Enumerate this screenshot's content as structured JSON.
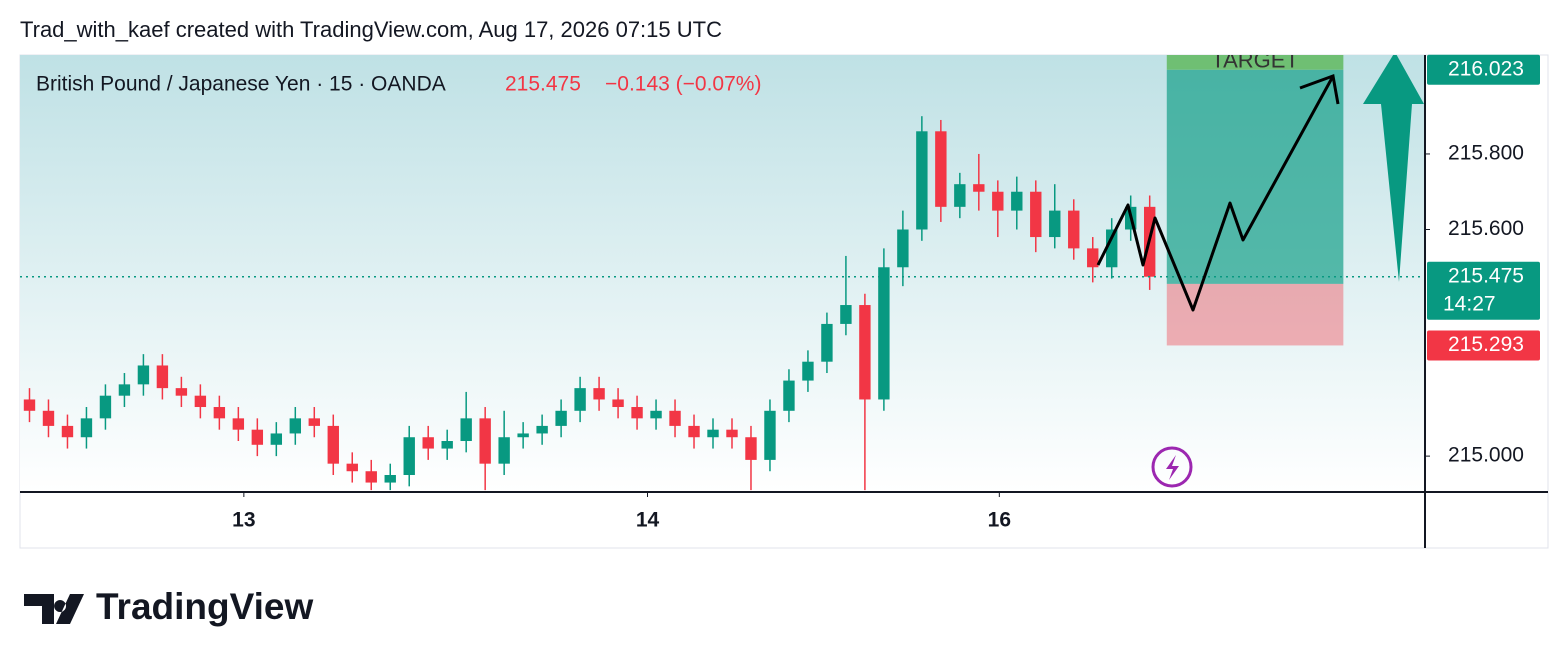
{
  "header": {
    "attribution": "Trad_with_kaef created with TradingView.com, Aug 17, 2026 07:15 UTC",
    "brand": "TradingView"
  },
  "chart_data": {
    "type": "candlestick",
    "symbol": "British Pound / Japanese Yen · 15 · OANDA",
    "change": "−0.143 (−0.07%)",
    "countdown": "14:27",
    "up_color": "#089981",
    "down_color": "#f23645",
    "open": [
      215.15,
      215.12,
      215.08,
      215.05,
      215.1,
      215.16,
      215.19,
      215.24,
      215.18,
      215.16,
      215.13,
      215.1,
      215.07,
      215.03,
      215.06,
      215.1,
      215.08,
      214.98,
      214.96,
      214.93,
      214.95,
      215.05,
      215.02,
      215.04,
      215.1,
      214.98,
      215.05,
      215.06,
      215.08,
      215.12,
      215.18,
      215.15,
      215.13,
      215.1,
      215.12,
      215.08,
      215.05,
      215.07,
      215.05,
      214.99,
      215.12,
      215.2,
      215.25,
      215.35,
      215.4,
      215.15,
      215.5,
      215.6,
      215.86,
      215.66,
      215.72,
      215.7,
      215.65,
      215.7,
      215.58,
      215.65,
      215.55,
      215.5,
      215.6,
      215.66
    ],
    "high": [
      215.18,
      215.15,
      215.11,
      215.13,
      215.19,
      215.22,
      215.27,
      215.27,
      215.21,
      215.19,
      215.16,
      215.13,
      215.1,
      215.09,
      215.13,
      215.13,
      215.11,
      215.01,
      214.99,
      214.98,
      215.08,
      215.08,
      215.07,
      215.17,
      215.13,
      215.12,
      215.09,
      215.11,
      215.15,
      215.21,
      215.21,
      215.18,
      215.16,
      215.15,
      215.15,
      215.11,
      215.1,
      215.1,
      215.08,
      215.15,
      215.23,
      215.28,
      215.38,
      215.53,
      215.43,
      215.55,
      215.65,
      215.9,
      215.89,
      215.75,
      215.8,
      215.73,
      215.74,
      215.73,
      215.72,
      215.68,
      215.58,
      215.63,
      215.69,
      215.69
    ],
    "low": [
      215.09,
      215.05,
      215.02,
      215.02,
      215.07,
      215.13,
      215.16,
      215.15,
      215.13,
      215.1,
      215.07,
      215.04,
      215.0,
      215.0,
      215.03,
      215.05,
      214.95,
      214.93,
      214.91,
      214.91,
      214.92,
      214.99,
      214.99,
      215.01,
      214.91,
      214.95,
      215.02,
      215.03,
      215.05,
      215.09,
      215.12,
      215.1,
      215.07,
      215.07,
      215.05,
      215.02,
      215.02,
      215.02,
      214.91,
      214.96,
      215.09,
      215.17,
      215.22,
      215.32,
      214.91,
      215.12,
      215.45,
      215.57,
      215.62,
      215.63,
      215.65,
      215.58,
      215.6,
      215.54,
      215.55,
      215.52,
      215.46,
      215.47,
      215.57,
      215.44
    ],
    "close": [
      215.12,
      215.08,
      215.05,
      215.1,
      215.16,
      215.19,
      215.24,
      215.18,
      215.16,
      215.13,
      215.1,
      215.07,
      215.03,
      215.06,
      215.1,
      215.08,
      214.98,
      214.96,
      214.93,
      214.95,
      215.05,
      215.02,
      215.04,
      215.1,
      214.98,
      215.05,
      215.06,
      215.08,
      215.12,
      215.18,
      215.15,
      215.13,
      215.1,
      215.12,
      215.08,
      215.05,
      215.07,
      215.05,
      214.99,
      215.12,
      215.2,
      215.25,
      215.35,
      215.4,
      215.15,
      215.5,
      215.6,
      215.86,
      215.66,
      215.72,
      215.7,
      215.65,
      215.7,
      215.58,
      215.65,
      215.55,
      215.5,
      215.6,
      215.66,
      215.475
    ],
    "xlim": [
      -0.5,
      73.5
    ],
    "xticks": [
      {
        "value": 11.29,
        "label": "13"
      },
      {
        "value": 32.55,
        "label": "14"
      },
      {
        "value": 51.08,
        "label": "16"
      }
    ],
    "ylim": [
      214.905,
      216.062
    ],
    "yticks": [
      {
        "value": 215.8,
        "label": "215.800"
      },
      {
        "value": 215.6,
        "label": "215.600"
      },
      {
        "value": 215.0,
        "label": "215.000"
      }
    ],
    "position": {
      "entry": 215.456,
      "target": 216.023,
      "stop": 215.293,
      "x": [
        59.9,
        69.2
      ],
      "label": "TARGET"
    }
  }
}
